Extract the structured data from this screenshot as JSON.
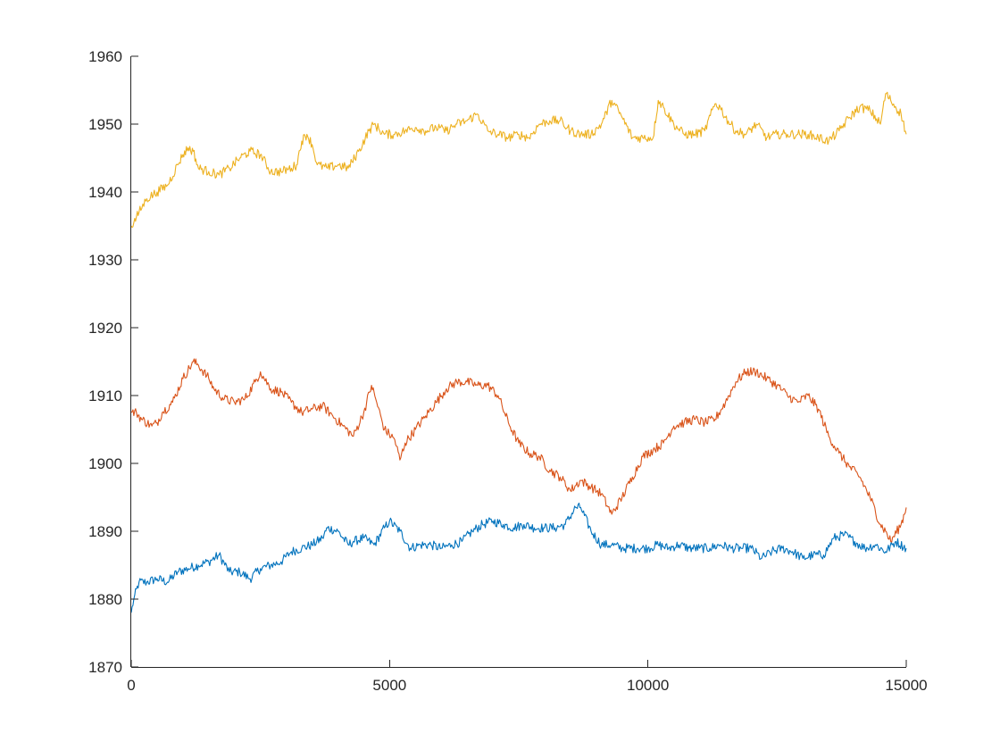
{
  "chart_data": {
    "type": "line",
    "title": "",
    "xlabel": "",
    "ylabel": "",
    "xlim": [
      0,
      15000
    ],
    "ylim": [
      1870,
      1960
    ],
    "xticks": [
      0,
      5000,
      10000,
      15000
    ],
    "yticks": [
      1870,
      1880,
      1890,
      1900,
      1910,
      1920,
      1930,
      1940,
      1950,
      1960
    ],
    "grid": false,
    "legend": false,
    "box": false,
    "series": [
      {
        "color": "#0072bd",
        "x": [
          0,
          50,
          150,
          300,
          500,
          700,
          900,
          1100,
          1300,
          1500,
          1700,
          1900,
          2100,
          2300,
          2500,
          2700,
          2900,
          3100,
          3300,
          3500,
          3700,
          3800,
          4000,
          4200,
          4300,
          4500,
          4700,
          4900,
          5000,
          5200,
          5400,
          5600,
          5800,
          6000,
          6200,
          6400,
          6600,
          6800,
          7000,
          7200,
          7400,
          7600,
          7800,
          8000,
          8200,
          8400,
          8600,
          8700,
          8900,
          9100,
          9300,
          9500,
          9800,
          10000,
          10200,
          10400,
          10600,
          10800,
          11000,
          11200,
          11400,
          11600,
          11800,
          12000,
          12200,
          12400,
          12600,
          12800,
          13000,
          13200,
          13400,
          13600,
          13800,
          14000,
          14200,
          14400,
          14600,
          14800,
          15000
        ],
        "y": [
          1878,
          1880,
          1882.5,
          1882.5,
          1883,
          1882.5,
          1884,
          1884.5,
          1885,
          1885.5,
          1886.5,
          1884,
          1884,
          1883,
          1884.5,
          1885,
          1885.5,
          1887,
          1887.5,
          1888,
          1889,
          1890.5,
          1890,
          1888,
          1888.5,
          1889,
          1888,
          1890.5,
          1891.5,
          1890,
          1887.5,
          1888,
          1888,
          1887.5,
          1888,
          1888.5,
          1890,
          1891,
          1891.5,
          1891,
          1890.5,
          1891,
          1890.5,
          1890.5,
          1890.5,
          1891,
          1893.5,
          1893.5,
          1890,
          1888,
          1888,
          1887.5,
          1887.5,
          1887.5,
          1888,
          1887.5,
          1888,
          1887.5,
          1887.5,
          1887.5,
          1888,
          1887.5,
          1887.5,
          1887.5,
          1886,
          1887,
          1887.5,
          1887,
          1886,
          1886.5,
          1886.5,
          1889,
          1889.5,
          1888.5,
          1887.5,
          1888,
          1887,
          1888.5,
          1887.5
        ]
      },
      {
        "color": "#d95319",
        "x": [
          0,
          100,
          200,
          400,
          500,
          600,
          800,
          1000,
          1200,
          1300,
          1500,
          1600,
          1800,
          2000,
          2200,
          2400,
          2500,
          2700,
          2900,
          3100,
          3300,
          3500,
          3700,
          3900,
          4100,
          4300,
          4500,
          4650,
          4750,
          4900,
          5100,
          5200,
          5300,
          5500,
          5700,
          5900,
          6100,
          6300,
          6500,
          6700,
          6900,
          7100,
          7300,
          7500,
          7700,
          7900,
          8100,
          8300,
          8500,
          8700,
          8900,
          9100,
          9300,
          9500,
          9700,
          9900,
          10100,
          10300,
          10500,
          10700,
          10900,
          11100,
          11300,
          11500,
          11700,
          11900,
          12100,
          12300,
          12500,
          12700,
          12900,
          13100,
          13300,
          13500,
          13700,
          13900,
          14100,
          14300,
          14500,
          14600,
          14700,
          14900,
          15000
        ],
        "y": [
          1907.5,
          1907.5,
          1906.5,
          1905.5,
          1906,
          1907.5,
          1909,
          1912.5,
          1915,
          1914.5,
          1912.5,
          1911,
          1909.5,
          1909,
          1909.5,
          1912,
          1913.5,
          1911,
          1910.5,
          1909,
          1907.5,
          1908,
          1908.5,
          1907,
          1905.5,
          1904,
          1907.5,
          1911.5,
          1909,
          1905,
          1903.5,
          1900.5,
          1903,
          1905,
          1907,
          1909,
          1911,
          1912,
          1912,
          1911.5,
          1911.5,
          1910,
          1906,
          1903,
          1901.5,
          1901,
          1899,
          1898,
          1896,
          1897.5,
          1896.5,
          1895.5,
          1892.5,
          1895,
          1898,
          1901,
          1902,
          1903,
          1905.5,
          1906,
          1906.5,
          1906,
          1906.5,
          1909,
          1912,
          1913.5,
          1913.5,
          1912.5,
          1911.5,
          1910,
          1909,
          1910,
          1908,
          1904,
          1901.5,
          1899.5,
          1898,
          1895,
          1891,
          1890,
          1888.5,
          1891,
          1893.5
        ]
      },
      {
        "color": "#edb120",
        "x": [
          0,
          50,
          150,
          300,
          500,
          700,
          900,
          1000,
          1100,
          1200,
          1300,
          1500,
          1700,
          1900,
          2100,
          2300,
          2500,
          2700,
          2900,
          3100,
          3200,
          3300,
          3400,
          3500,
          3600,
          3800,
          4000,
          4200,
          4400,
          4600,
          4700,
          4900,
          5100,
          5300,
          5500,
          5700,
          5900,
          6100,
          6300,
          6500,
          6700,
          6900,
          7100,
          7300,
          7500,
          7700,
          7900,
          8100,
          8300,
          8500,
          8700,
          8900,
          9100,
          9300,
          9500,
          9700,
          9900,
          10100,
          10200,
          10300,
          10500,
          10700,
          10900,
          11100,
          11300,
          11400,
          11500,
          11700,
          11900,
          12100,
          12300,
          12500,
          12700,
          12900,
          13100,
          13300,
          13500,
          13700,
          13900,
          14100,
          14300,
          14500,
          14600,
          14700,
          14900,
          15000
        ],
        "y": [
          1935,
          1935.5,
          1937,
          1939,
          1940,
          1941,
          1944,
          1945.5,
          1946.5,
          1946,
          1943.5,
          1943,
          1942.5,
          1943.5,
          1945,
          1946,
          1945.5,
          1943,
          1943,
          1943.5,
          1944,
          1947.5,
          1948.5,
          1947,
          1944,
          1943.5,
          1944,
          1943.5,
          1946,
          1949,
          1950,
          1948.5,
          1948.5,
          1949,
          1949.5,
          1949,
          1949.5,
          1949,
          1950,
          1950.5,
          1951.5,
          1949,
          1948.5,
          1948,
          1948.5,
          1948,
          1950,
          1950.5,
          1950.5,
          1949,
          1948.5,
          1948.5,
          1950,
          1953.5,
          1951,
          1948,
          1948,
          1948,
          1953.5,
          1952.5,
          1950,
          1948.5,
          1948.5,
          1949,
          1953,
          1952.5,
          1951,
          1949,
          1948.5,
          1950,
          1948,
          1948.5,
          1948.5,
          1948.5,
          1948.5,
          1948,
          1947.5,
          1949,
          1951,
          1952.5,
          1952,
          1950,
          1954.5,
          1953.5,
          1951.5,
          1948.5
        ]
      }
    ]
  }
}
